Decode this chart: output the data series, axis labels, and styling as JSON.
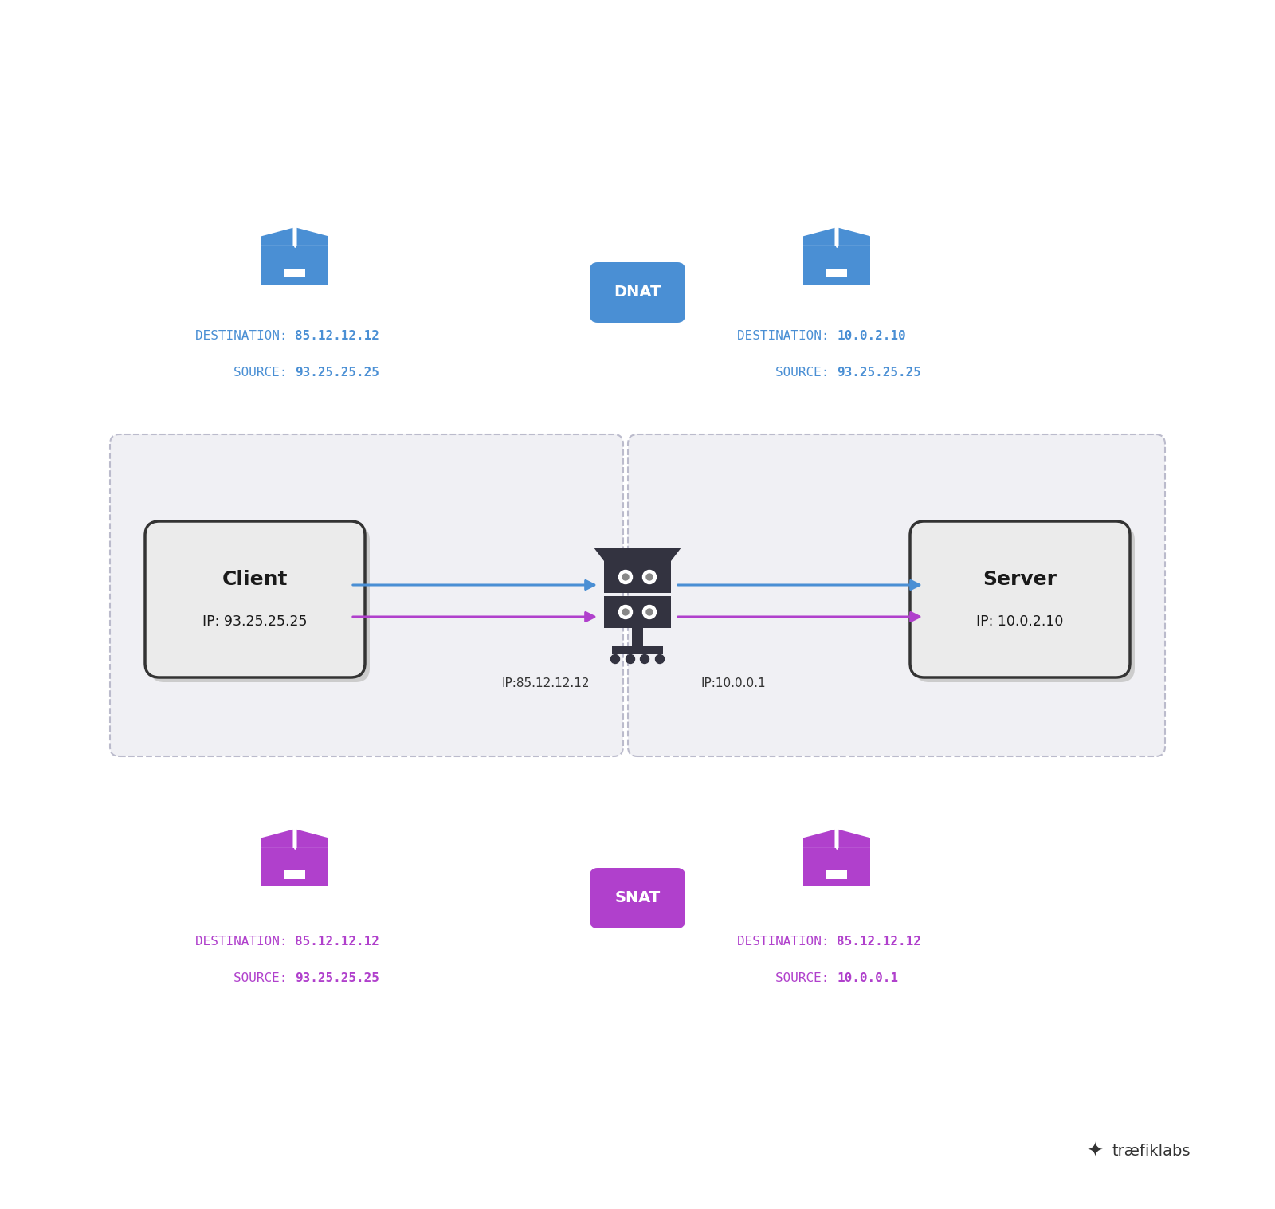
{
  "bg_color": "#ffffff",
  "blue": "#4a8fd4",
  "purple": "#b040cc",
  "box_bg": "#ebebeb",
  "box_border": "#333333",
  "dashed_box_bg": "#f0f0f4",
  "dashed_box_border": "#bbbbcc",
  "server_color": "#333340",
  "client_label": "Client",
  "client_ip": "IP: 93.25.25.25",
  "server_label": "Server",
  "server_ip": "IP: 10.0.2.10",
  "nat_ip_left": "IP:85.12.12.12",
  "nat_ip_right": "IP:10.0.0.1",
  "dnat_label": "DNAT",
  "snat_label": "SNAT",
  "dnat_dest_left_label": "DESTINATION: ",
  "dnat_dest_left_val": "85.12.12.12",
  "dnat_src_left_label": "SOURCE: ",
  "dnat_src_left_val": "93.25.25.25",
  "dnat_dest_right_label": "DESTINATION: ",
  "dnat_dest_right_val": "10.0.2.10",
  "dnat_src_right_label": "SOURCE: ",
  "dnat_src_right_val": "93.25.25.25",
  "snat_dest_left_label": "DESTINATION: ",
  "snat_dest_left_val": "85.12.12.12",
  "snat_src_left_label": "SOURCE: ",
  "snat_src_left_val": "93.25.25.25",
  "snat_dest_right_label": "DESTINATION: ",
  "snat_dest_right_val": "85.12.12.12",
  "snat_src_right_label": "SOURCE: ",
  "snat_src_right_val": "10.0.0.1",
  "logo_color": "#333333"
}
